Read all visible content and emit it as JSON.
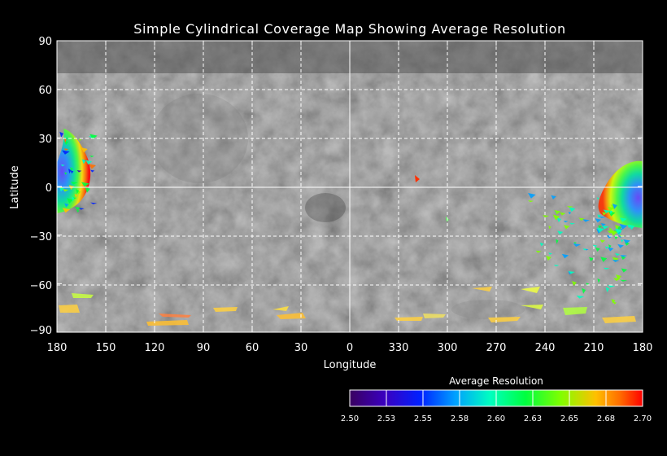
{
  "title": "Simple Cylindrical Coverage Map Showing Average Resolution",
  "map": {
    "xlabel": "Longitude",
    "ylabel": "Latitude",
    "x_ticks": [
      "180",
      "150",
      "120",
      "90",
      "60",
      "30",
      "0",
      "330",
      "300",
      "270",
      "240",
      "210",
      "180"
    ],
    "y_ticks": [
      "90",
      "60",
      "30",
      "0",
      "−30",
      "−60",
      "−90"
    ],
    "grid": true,
    "background": "grayscale planetary surface mosaic",
    "coverage_colormap": "rainbow"
  },
  "colorbar": {
    "title": "Average Resolution",
    "ticks": [
      "2.50",
      "2.53",
      "2.55",
      "2.58",
      "2.60",
      "2.63",
      "2.65",
      "2.68",
      "2.70"
    ],
    "colors": [
      "#3a0060",
      "#3a00c0",
      "#0020ff",
      "#00a0ff",
      "#00ffc0",
      "#00ff40",
      "#80ff00",
      "#ffc000",
      "#ff7000",
      "#ff0000"
    ]
  }
}
